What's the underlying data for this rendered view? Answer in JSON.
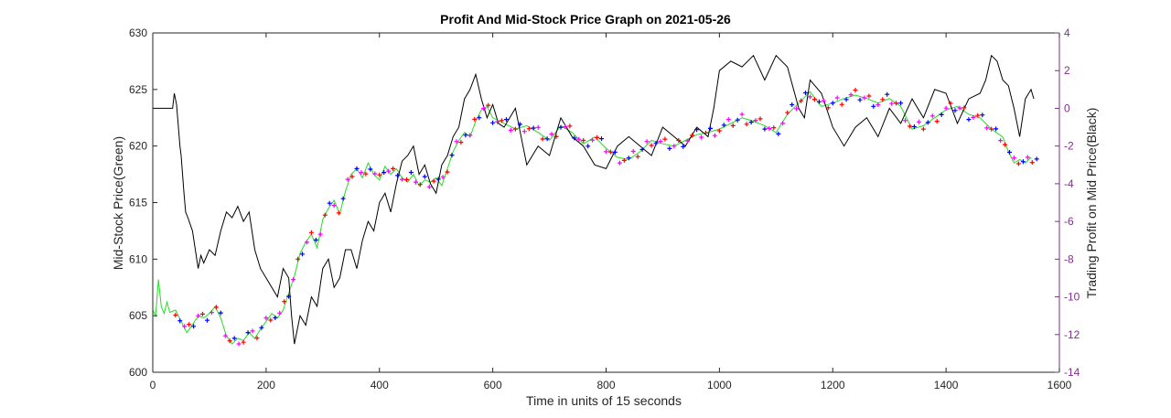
{
  "chart_data": {
    "type": "line",
    "title": "Profit And Mid-Stock Price Graph on 2021-05-26",
    "xlabel": "Time in units of 15 seconds",
    "ylabel_left": "Mid-Stock Price(Green)",
    "ylabel_right": "Trading Profit on Mid Price(Black)",
    "xlim": [
      0,
      1600
    ],
    "ylim_left": [
      600,
      630
    ],
    "ylim_right": [
      -14,
      4
    ],
    "x_ticks": [
      "0",
      "200",
      "400",
      "600",
      "800",
      "1000",
      "1200",
      "1400",
      "1600"
    ],
    "y_ticks_left": [
      "600",
      "605",
      "610",
      "615",
      "620",
      "625",
      "630"
    ],
    "y_ticks_right": [
      "-14",
      "-12",
      "-10",
      "-8",
      "-6",
      "-4",
      "-2",
      "0",
      "2",
      "4"
    ],
    "colors": {
      "price": "#22dd22",
      "profit": "#000000",
      "right_axis": "#7e2f8e",
      "marker_red": "#ff0000",
      "marker_blue": "#0000ff",
      "marker_magenta": "#ff00ff"
    },
    "series": [
      {
        "name": "Mid-Stock Price (Green)",
        "axis": "left",
        "x": [
          0,
          5,
          10,
          15,
          20,
          25,
          30,
          40,
          50,
          60,
          70,
          80,
          90,
          100,
          110,
          120,
          130,
          140,
          150,
          160,
          170,
          180,
          190,
          200,
          210,
          220,
          230,
          240,
          250,
          260,
          270,
          280,
          290,
          300,
          310,
          320,
          330,
          340,
          350,
          360,
          370,
          380,
          390,
          400,
          410,
          420,
          430,
          440,
          450,
          460,
          470,
          480,
          490,
          500,
          510,
          520,
          530,
          540,
          550,
          560,
          570,
          580,
          590,
          600,
          620,
          640,
          660,
          680,
          700,
          720,
          740,
          760,
          780,
          800,
          820,
          840,
          860,
          880,
          900,
          920,
          940,
          960,
          980,
          1000,
          1020,
          1040,
          1060,
          1080,
          1100,
          1120,
          1140,
          1160,
          1180,
          1200,
          1220,
          1240,
          1260,
          1280,
          1300,
          1320,
          1340,
          1360,
          1380,
          1400,
          1420,
          1440,
          1460,
          1480,
          1500,
          1510,
          1520,
          1530,
          1540,
          1550
        ],
        "values": [
          605.5,
          605.0,
          608.2,
          605.8,
          605.2,
          606.2,
          605.3,
          605.5,
          604.5,
          603.5,
          604.2,
          605.0,
          604.8,
          605.2,
          605.8,
          604.8,
          603.2,
          602.5,
          603.0,
          602.8,
          603.5,
          603.0,
          603.8,
          604.5,
          605.2,
          604.8,
          605.5,
          607.0,
          608.5,
          610.5,
          611.5,
          612.2,
          611.0,
          613.5,
          614.5,
          615.2,
          614.0,
          616.0,
          617.5,
          618.0,
          617.2,
          618.5,
          617.5,
          617.0,
          618.2,
          617.5,
          618.0,
          617.2,
          616.8,
          617.5,
          616.5,
          617.0,
          616.8,
          617.2,
          616.5,
          618.0,
          619.5,
          620.5,
          621.2,
          620.8,
          622.2,
          623.2,
          623.5,
          622.5,
          622.0,
          621.5,
          621.8,
          621.2,
          620.5,
          621.8,
          621.2,
          620.2,
          620.8,
          619.8,
          619.0,
          618.8,
          619.5,
          620.5,
          620.2,
          620.0,
          620.5,
          621.0,
          621.2,
          621.5,
          622.0,
          622.5,
          622.2,
          621.8,
          621.2,
          622.8,
          623.8,
          624.8,
          623.5,
          623.8,
          624.2,
          624.5,
          624.2,
          623.8,
          624.2,
          623.5,
          621.5,
          621.8,
          622.5,
          623.2,
          623.5,
          622.8,
          622.5,
          621.5,
          620.8,
          619.5,
          618.5,
          618.8,
          618.5,
          619.0
        ]
      },
      {
        "name": "Trading Profit on Mid Price (Black)",
        "axis": "right",
        "x": [
          0,
          35,
          38,
          42,
          48,
          50,
          55,
          58,
          62,
          70,
          75,
          80,
          85,
          90,
          100,
          110,
          120,
          130,
          140,
          150,
          160,
          170,
          180,
          190,
          200,
          210,
          220,
          230,
          240,
          245,
          250,
          260,
          270,
          280,
          290,
          300,
          310,
          320,
          330,
          340,
          350,
          360,
          370,
          380,
          390,
          400,
          410,
          420,
          430,
          440,
          450,
          460,
          470,
          480,
          490,
          500,
          510,
          520,
          530,
          540,
          550,
          560,
          570,
          580,
          590,
          600,
          610,
          620,
          640,
          660,
          680,
          700,
          720,
          740,
          760,
          780,
          800,
          820,
          840,
          860,
          880,
          900,
          920,
          940,
          960,
          980,
          990,
          1000,
          1020,
          1040,
          1060,
          1080,
          1100,
          1120,
          1140,
          1150,
          1160,
          1180,
          1200,
          1220,
          1240,
          1260,
          1280,
          1300,
          1320,
          1340,
          1360,
          1380,
          1400,
          1420,
          1440,
          1460,
          1470,
          1480,
          1490,
          1500,
          1510,
          1520,
          1530,
          1540,
          1550,
          1555
        ],
        "values": [
          0.0,
          0.0,
          0.8,
          0.2,
          -2.0,
          -2.5,
          -4.5,
          -5.5,
          -5.8,
          -6.5,
          -7.5,
          -8.5,
          -7.8,
          -8.2,
          -7.5,
          -7.8,
          -6.5,
          -5.5,
          -5.8,
          -5.2,
          -6.0,
          -5.5,
          -7.5,
          -8.5,
          -9.0,
          -9.5,
          -10.0,
          -8.5,
          -9.0,
          -11.0,
          -12.5,
          -11.0,
          -11.5,
          -10.0,
          -10.5,
          -8.5,
          -8.0,
          -9.5,
          -9.0,
          -7.5,
          -7.5,
          -8.5,
          -7.0,
          -6.0,
          -6.5,
          -5.0,
          -4.5,
          -5.5,
          -4.0,
          -2.8,
          -2.5,
          -2.0,
          -3.5,
          -3.0,
          -4.0,
          -4.5,
          -3.0,
          -2.5,
          -1.5,
          -1.0,
          0.5,
          1.0,
          1.8,
          0.5,
          -0.5,
          0.2,
          -0.8,
          -1.0,
          0.0,
          -3.0,
          -2.0,
          -2.5,
          -0.5,
          -1.5,
          -2.0,
          -3.0,
          -3.2,
          -2.0,
          -1.5,
          -2.0,
          -2.5,
          -1.0,
          -1.5,
          -2.0,
          -1.0,
          -1.5,
          0.0,
          2.0,
          2.5,
          2.2,
          2.8,
          1.5,
          2.8,
          2.2,
          0.0,
          -0.5,
          1.5,
          0.8,
          -1.0,
          -2.0,
          -1.0,
          -0.5,
          -1.5,
          0.0,
          -0.8,
          0.5,
          -0.5,
          1.0,
          0.8,
          -0.8,
          0.5,
          0.8,
          1.5,
          2.8,
          2.5,
          1.5,
          1.2,
          0.0,
          -1.5,
          0.5,
          1.0,
          0.5
        ]
      }
    ],
    "markers": {
      "description": "Trade markers on the price series",
      "shape": "+",
      "cycle_colors": [
        "#ff0000",
        "#0000ff",
        "#ff00ff"
      ],
      "x_start": 40,
      "x_end": 1560,
      "x_step": 8
    }
  }
}
